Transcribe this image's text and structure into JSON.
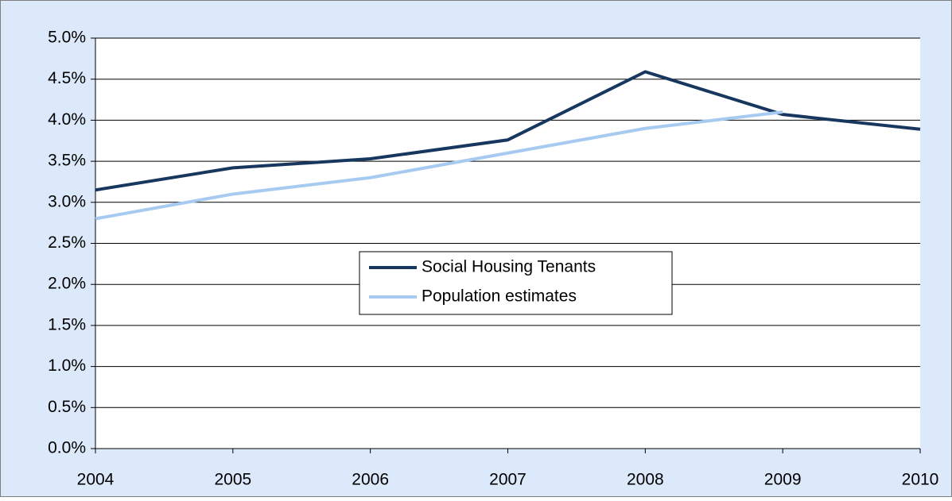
{
  "chart_data": {
    "type": "line",
    "x": [
      2004,
      2005,
      2006,
      2007,
      2008,
      2009,
      2010
    ],
    "series": [
      {
        "name": "Social Housing Tenants",
        "color": "#17375e",
        "values": [
          3.15,
          3.42,
          3.53,
          3.76,
          4.59,
          4.07,
          3.89
        ]
      },
      {
        "name": "Population estimates",
        "color": "#a6caf0",
        "values": [
          2.8,
          3.1,
          3.3,
          3.6,
          3.9,
          4.1,
          null
        ]
      }
    ],
    "xlim": [
      2004,
      2010
    ],
    "xticks": [
      2004,
      2005,
      2006,
      2007,
      2008,
      2009,
      2010
    ],
    "ylim": [
      0,
      5
    ],
    "yticks": [
      {
        "value": 0,
        "label": "0.0%"
      },
      {
        "value": 0.5,
        "label": "0.5%"
      },
      {
        "value": 1,
        "label": "1.0%"
      },
      {
        "value": 1.5,
        "label": "1.5%"
      },
      {
        "value": 2,
        "label": "2.0%"
      },
      {
        "value": 2.5,
        "label": "2.5%"
      },
      {
        "value": 3,
        "label": "3.0%"
      },
      {
        "value": 3.5,
        "label": "3.5%"
      },
      {
        "value": 4,
        "label": "4.0%"
      },
      {
        "value": 4.5,
        "label": "4.5%"
      },
      {
        "value": 5,
        "label": "5.0%"
      }
    ],
    "grid": true,
    "legend": "center"
  }
}
